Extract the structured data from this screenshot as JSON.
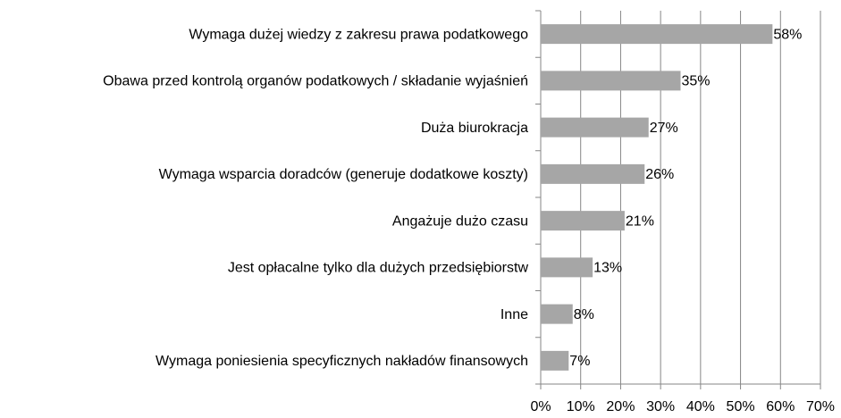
{
  "chart_data": {
    "type": "barh",
    "categories": [
      "Wymaga dużej wiedzy z zakresu prawa podatkowego",
      "Obawa przed kontrolą organów podatkowych / składanie wyjaśnień",
      "Duża biurokracja",
      "Wymaga wsparcia doradców (generuje dodatkowe koszty)",
      "Angażuje dużo czasu",
      "Jest opłacalne tylko dla dużych przedsiębiorstw",
      "Inne",
      "Wymaga poniesienia specyficznych nakładów finansowych"
    ],
    "values": [
      58,
      35,
      27,
      26,
      21,
      13,
      8,
      7
    ],
    "value_labels": [
      "58%",
      "35%",
      "27%",
      "26%",
      "21%",
      "13%",
      "8%",
      "7%"
    ],
    "color": "#a6a6a6",
    "xlim": [
      0,
      70
    ],
    "xticks": [
      {
        "value": 0,
        "label": "0%"
      },
      {
        "value": 10,
        "label": "10%"
      },
      {
        "value": 20,
        "label": "20%"
      },
      {
        "value": 30,
        "label": "30%"
      },
      {
        "value": 40,
        "label": "40%"
      },
      {
        "value": 50,
        "label": "50%"
      },
      {
        "value": 60,
        "label": "60%"
      },
      {
        "value": 70,
        "label": "70%"
      }
    ],
    "grid": true
  }
}
